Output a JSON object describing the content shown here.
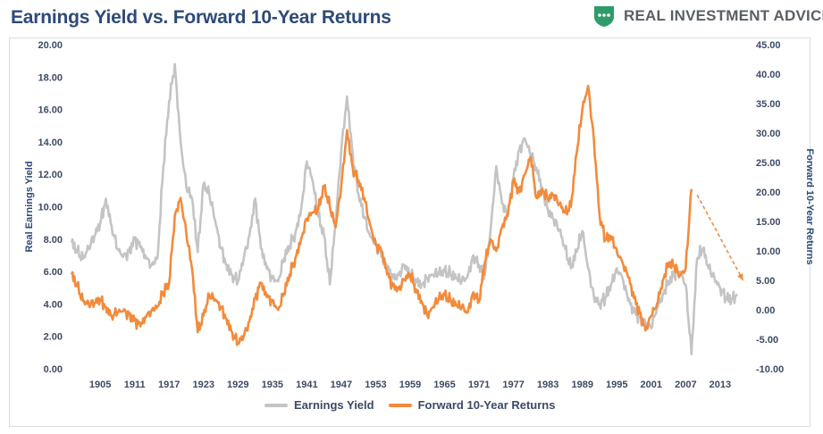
{
  "header": {
    "title": "Earnings Yield vs. Forward 10-Year Returns",
    "brand": "REAL INVESTMENT ADVICE"
  },
  "colors": {
    "earnings_yield": "#c4c4c4",
    "forward_returns": "#f28b3c",
    "title": "#2d4a78",
    "brand_green": "#2e9b6a"
  },
  "icons": {
    "brand_logo": "shield-logo-icon"
  },
  "chart_data": {
    "type": "line",
    "title": "Earnings Yield vs. Forward 10-Year Returns",
    "ylabel_left": "Real Earnings Yield",
    "ylabel_right": "Forward 10-Year Returns",
    "ylim_left": [
      0,
      20
    ],
    "ylim_right": [
      -10,
      45
    ],
    "left_ticks": [
      "0.00",
      "2.00",
      "4.00",
      "6.00",
      "8.00",
      "10.00",
      "12.00",
      "14.00",
      "16.00",
      "18.00",
      "20.00"
    ],
    "right_ticks": [
      "-10.00",
      "-5.00",
      "0.00",
      "5.00",
      "10.00",
      "15.00",
      "20.00",
      "25.00",
      "30.00",
      "35.00",
      "40.00",
      "45.00"
    ],
    "x_ticks": [
      "1905",
      "1911",
      "1917",
      "1923",
      "1929",
      "1935",
      "1941",
      "1947",
      "1953",
      "1959",
      "1965",
      "1971",
      "1977",
      "1983",
      "1989",
      "1995",
      "2001",
      "2007",
      "2013"
    ],
    "xlim": [
      1900,
      2018
    ],
    "grid": false,
    "legend_position": "bottom",
    "series": [
      {
        "name": "Earnings Yield",
        "axis": "left",
        "x": [
          1900,
          1901,
          1902,
          1903,
          1904,
          1905,
          1906,
          1907,
          1908,
          1909,
          1910,
          1911,
          1912,
          1913,
          1914,
          1915,
          1916,
          1917,
          1918,
          1919,
          1920,
          1921,
          1922,
          1923,
          1924,
          1925,
          1926,
          1927,
          1928,
          1929,
          1930,
          1931,
          1932,
          1933,
          1934,
          1935,
          1936,
          1937,
          1938,
          1939,
          1940,
          1941,
          1942,
          1943,
          1944,
          1945,
          1946,
          1947,
          1948,
          1949,
          1950,
          1951,
          1952,
          1953,
          1954,
          1955,
          1956,
          1957,
          1958,
          1959,
          1960,
          1961,
          1962,
          1963,
          1964,
          1965,
          1966,
          1967,
          1968,
          1969,
          1970,
          1971,
          1972,
          1973,
          1974,
          1975,
          1976,
          1977,
          1978,
          1979,
          1980,
          1981,
          1982,
          1983,
          1984,
          1985,
          1986,
          1987,
          1988,
          1989,
          1990,
          1991,
          1992,
          1993,
          1994,
          1995,
          1996,
          1997,
          1998,
          1999,
          2000,
          2001,
          2002,
          2003,
          2004,
          2005,
          2006,
          2007,
          2008,
          2009,
          2010,
          2011,
          2012,
          2013,
          2014,
          2015,
          2016
        ],
        "y": [
          7.8,
          7.2,
          6.8,
          7.5,
          8.2,
          9.0,
          10.5,
          8.8,
          7.4,
          6.9,
          7.2,
          8.0,
          7.5,
          6.8,
          6.4,
          6.9,
          12.5,
          16.5,
          18.8,
          14.0,
          11.2,
          10.5,
          7.2,
          11.4,
          10.8,
          9.2,
          7.5,
          6.4,
          5.8,
          5.4,
          6.8,
          8.2,
          10.5,
          7.4,
          6.2,
          5.6,
          5.4,
          6.8,
          7.6,
          8.4,
          9.8,
          12.8,
          11.6,
          9.4,
          8.2,
          5.2,
          9.0,
          13.5,
          16.8,
          13.2,
          10.8,
          9.4,
          8.2,
          7.8,
          6.9,
          6.2,
          5.6,
          5.8,
          6.4,
          5.8,
          5.5,
          5.2,
          5.6,
          5.8,
          5.9,
          6.0,
          5.8,
          5.6,
          5.4,
          5.7,
          7.0,
          6.4,
          5.8,
          8.5,
          12.5,
          10.2,
          9.4,
          11.8,
          13.5,
          14.2,
          13.2,
          12.4,
          11.2,
          9.8,
          9.2,
          8.6,
          7.4,
          6.2,
          7.2,
          8.5,
          6.2,
          4.5,
          4.0,
          4.4,
          5.2,
          6.2,
          5.6,
          4.2,
          3.5,
          3.2,
          2.8,
          2.5,
          3.8,
          4.6,
          5.4,
          5.8,
          6.0,
          5.2,
          0.9,
          6.8,
          7.4,
          6.2,
          5.6,
          5.0,
          4.4,
          4.3,
          4.6
        ]
      },
      {
        "name": "Forward 10-Year Returns",
        "axis": "right",
        "x": [
          1900,
          1901,
          1902,
          1903,
          1904,
          1905,
          1906,
          1907,
          1908,
          1909,
          1910,
          1911,
          1912,
          1913,
          1914,
          1915,
          1916,
          1917,
          1918,
          1919,
          1920,
          1921,
          1922,
          1923,
          1924,
          1925,
          1926,
          1927,
          1928,
          1929,
          1930,
          1931,
          1932,
          1933,
          1934,
          1935,
          1936,
          1937,
          1938,
          1939,
          1940,
          1941,
          1942,
          1943,
          1944,
          1945,
          1946,
          1947,
          1948,
          1949,
          1950,
          1951,
          1952,
          1953,
          1954,
          1955,
          1956,
          1957,
          1958,
          1959,
          1960,
          1961,
          1962,
          1963,
          1964,
          1965,
          1966,
          1967,
          1968,
          1969,
          1970,
          1971,
          1972,
          1973,
          1974,
          1975,
          1976,
          1977,
          1978,
          1979,
          1980,
          1981,
          1982,
          1983,
          1984,
          1985,
          1986,
          1987,
          1988,
          1989,
          1990,
          1991,
          1992,
          1993,
          1994,
          1995,
          1996,
          1997,
          1998,
          1999,
          2000,
          2001,
          2002,
          2003,
          2004,
          2005,
          2006,
          2007,
          2008
        ],
        "y": [
          6.0,
          4.0,
          1.5,
          1.0,
          1.2,
          1.8,
          0.5,
          -1.0,
          -0.4,
          -0.2,
          -0.8,
          -1.8,
          -2.8,
          -1.2,
          0.0,
          0.6,
          3.0,
          4.5,
          16.0,
          19.0,
          13.0,
          7.0,
          -3.8,
          -1.0,
          2.5,
          1.8,
          0.5,
          -1.5,
          -3.8,
          -5.6,
          -4.5,
          -2.0,
          2.0,
          4.5,
          2.2,
          1.5,
          0.0,
          2.8,
          6.0,
          8.8,
          12.0,
          15.5,
          16.5,
          17.0,
          21.0,
          17.5,
          14.0,
          21.0,
          30.5,
          24.0,
          22.0,
          19.0,
          14.5,
          11.0,
          10.0,
          6.0,
          4.0,
          3.5,
          5.2,
          6.0,
          3.5,
          1.5,
          -1.0,
          0.5,
          2.0,
          2.5,
          1.5,
          0.8,
          0.5,
          -0.5,
          3.0,
          1.5,
          8.0,
          12.0,
          10.0,
          14.0,
          16.0,
          22.0,
          20.0,
          23.0,
          26.0,
          19.0,
          20.5,
          19.0,
          19.5,
          18.0,
          16.5,
          17.5,
          26.5,
          34.0,
          38.0,
          29.0,
          16.0,
          12.0,
          12.5,
          10.0,
          8.0,
          5.5,
          2.0,
          -0.5,
          -3.5,
          -1.0,
          1.0,
          5.0,
          8.0,
          7.5,
          5.8,
          7.0,
          20.5
        ]
      }
    ],
    "trend_arrow": {
      "x0": 2009,
      "y0": 19.5,
      "x1": 2017,
      "y1": 5.0,
      "axis": "right"
    }
  },
  "legend": {
    "earnings_label": "Earnings Yield",
    "returns_label": "Forward 10-Year Returns"
  }
}
